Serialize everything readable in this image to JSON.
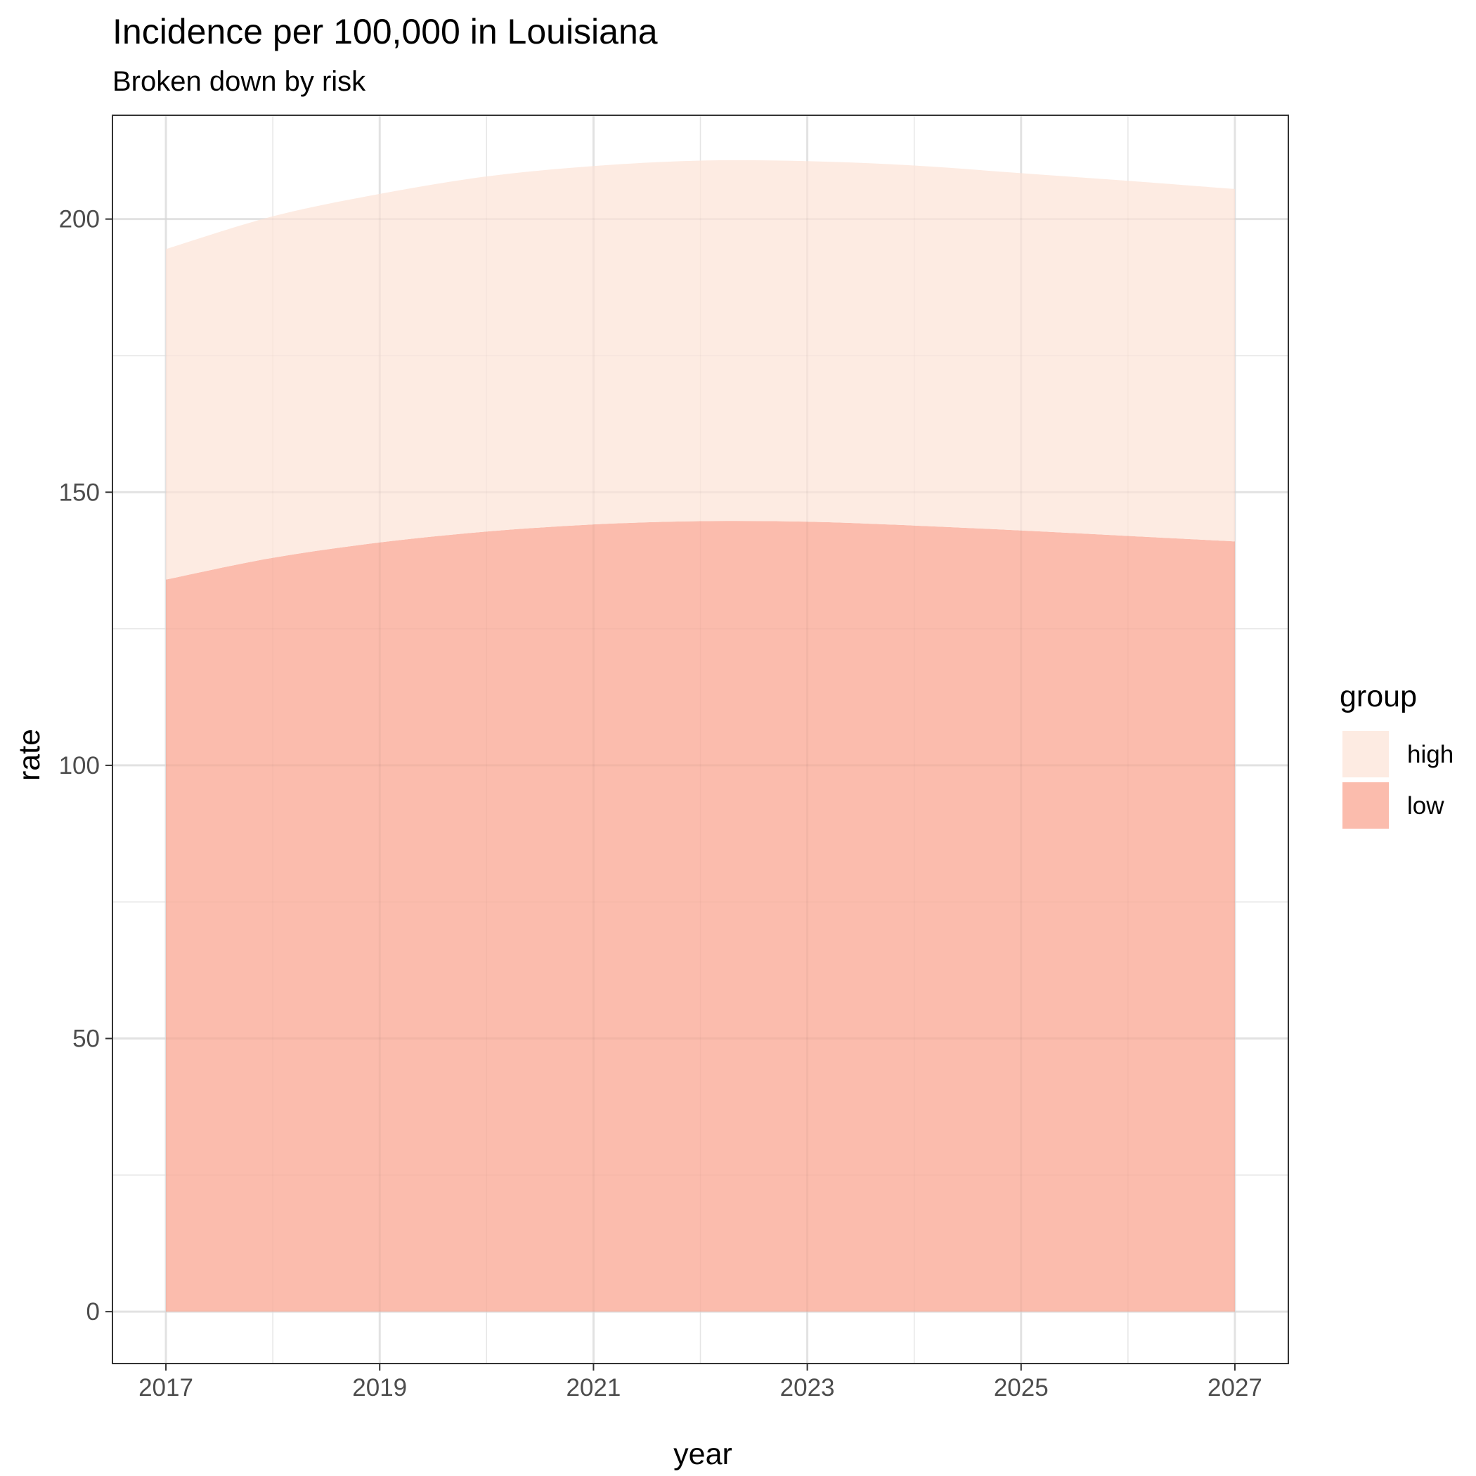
{
  "chart_data": {
    "type": "area",
    "title": "Incidence per 100,000 in Louisiana",
    "subtitle": "Broken down by risk",
    "xlabel": "year",
    "ylabel": "rate",
    "x": [
      2017,
      2018,
      2019,
      2020,
      2021,
      2022,
      2023,
      2024,
      2025,
      2026,
      2027
    ],
    "series": [
      {
        "name": "low",
        "values": [
          134,
          138,
          140.8,
          142.8,
          144.1,
          144.7,
          144.6,
          143.9,
          143,
          142,
          141
        ],
        "color": "#fbbcad"
      },
      {
        "name": "high",
        "values": [
          60.5,
          62.5,
          63.8,
          65,
          65.6,
          66,
          66,
          65.9,
          65.4,
          65,
          64.5
        ],
        "color": "#fdebe2"
      }
    ],
    "stacked": true,
    "stack_order_bottom_to_top": [
      "low",
      "high"
    ],
    "xlim": [
      2016.5,
      2027.5
    ],
    "ylim": [
      -9.5,
      219
    ],
    "x_ticks": [
      2017,
      2019,
      2021,
      2023,
      2025,
      2027
    ],
    "x_tick_labels": [
      "2017",
      "2019",
      "2021",
      "2023",
      "2025",
      "2027"
    ],
    "y_ticks": [
      0,
      50,
      100,
      150,
      200
    ],
    "y_tick_labels": [
      "0",
      "50",
      "100",
      "150",
      "200"
    ],
    "grid": true,
    "legend": {
      "title": "group",
      "position": "right",
      "entries": [
        "high",
        "low"
      ]
    }
  }
}
